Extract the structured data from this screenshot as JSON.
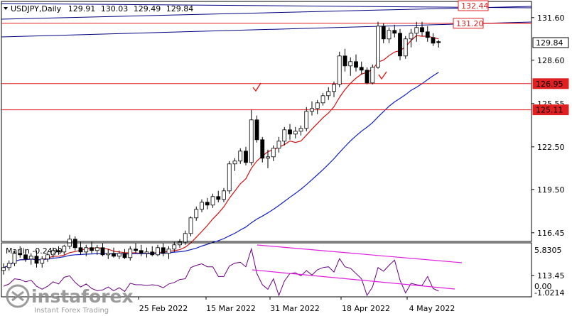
{
  "chart_data": [
    {
      "type": "candlestick",
      "header": {
        "symbol": "USDJPY,Daily",
        "open": "129.91",
        "high": "130.03",
        "low": "129.49",
        "close": "129.84"
      },
      "price_ticks": [
        "131.60",
        "128.60",
        "125.55",
        "122.50",
        "119.50",
        "116.45",
        "113.45"
      ],
      "price_ticks_value": [
        131.6,
        128.6,
        125.55,
        122.5,
        119.5,
        116.45,
        113.45
      ],
      "x_labels": [
        "25 Feb 2022",
        "15 Mar 2022",
        "31 Mar 2022",
        "18 Apr 2022",
        "4 May 2022"
      ],
      "levels": [
        {
          "label": "132.44",
          "value": 132.44,
          "color": "#e02020"
        },
        {
          "label": "131.20",
          "value": 131.2,
          "color": "#e02020"
        },
        {
          "label": "129.84",
          "value": 129.84,
          "color": "#000000"
        },
        {
          "label": "126.95",
          "value": 126.95,
          "color": "#e02020"
        },
        {
          "label": "125.11",
          "value": 125.11,
          "color": "#e02020"
        }
      ],
      "candles": [
        [
          113.8,
          114.3,
          113.5,
          114.0
        ],
        [
          114.0,
          114.5,
          113.8,
          114.3
        ],
        [
          114.3,
          115.2,
          114.1,
          115.0
        ],
        [
          115.0,
          115.5,
          114.7,
          114.9
        ],
        [
          114.9,
          115.3,
          114.4,
          114.6
        ],
        [
          114.6,
          115.0,
          114.2,
          114.8
        ],
        [
          114.8,
          115.2,
          114.0,
          114.3
        ],
        [
          114.3,
          114.8,
          114.0,
          114.6
        ],
        [
          114.6,
          115.1,
          114.4,
          114.9
        ],
        [
          114.9,
          115.4,
          114.7,
          115.2
        ],
        [
          115.2,
          115.5,
          114.9,
          115.1
        ],
        [
          115.1,
          115.6,
          114.9,
          115.5
        ],
        [
          115.5,
          116.3,
          115.3,
          116.0
        ],
        [
          116.0,
          116.2,
          115.2,
          115.4
        ],
        [
          115.4,
          115.8,
          114.9,
          115.1
        ],
        [
          115.1,
          115.6,
          114.8,
          115.4
        ],
        [
          115.4,
          115.8,
          115.0,
          115.2
        ],
        [
          115.2,
          115.6,
          114.9,
          115.4
        ],
        [
          115.4,
          115.7,
          114.8,
          114.9
        ],
        [
          114.9,
          115.3,
          114.6,
          115.0
        ],
        [
          115.0,
          115.4,
          114.7,
          114.8
        ],
        [
          114.8,
          115.2,
          114.6,
          115.0
        ],
        [
          115.0,
          115.3,
          114.6,
          114.7
        ],
        [
          114.7,
          115.5,
          114.5,
          115.3
        ],
        [
          115.3,
          115.7,
          115.0,
          115.2
        ],
        [
          115.2,
          115.6,
          114.8,
          115.0
        ],
        [
          115.0,
          115.4,
          114.7,
          115.1
        ],
        [
          115.1,
          115.5,
          114.8,
          114.9
        ],
        [
          114.9,
          115.6,
          114.8,
          115.4
        ],
        [
          115.4,
          115.7,
          114.8,
          115.0
        ],
        [
          115.0,
          115.5,
          114.6,
          115.3
        ],
        [
          115.3,
          115.8,
          115.1,
          115.6
        ],
        [
          115.6,
          116.0,
          115.4,
          115.8
        ],
        [
          115.8,
          116.6,
          115.6,
          116.4
        ],
        [
          116.4,
          117.6,
          116.2,
          117.5
        ],
        [
          117.5,
          118.3,
          117.3,
          118.1
        ],
        [
          118.1,
          118.8,
          117.9,
          118.6
        ],
        [
          118.6,
          118.9,
          118.1,
          118.4
        ],
        [
          118.4,
          119.2,
          118.2,
          119.0
        ],
        [
          119.0,
          119.4,
          118.6,
          118.8
        ],
        [
          118.8,
          119.6,
          118.6,
          119.4
        ],
        [
          119.4,
          121.5,
          119.2,
          121.3
        ],
        [
          121.3,
          121.7,
          120.8,
          121.5
        ],
        [
          121.5,
          122.4,
          121.3,
          122.2
        ],
        [
          122.2,
          122.5,
          121.2,
          121.4
        ],
        [
          121.4,
          125.1,
          121.2,
          124.4
        ],
        [
          124.4,
          124.7,
          122.8,
          123.0
        ],
        [
          123.0,
          123.2,
          121.4,
          121.7
        ],
        [
          121.7,
          122.3,
          121.0,
          121.8
        ],
        [
          121.8,
          122.6,
          121.5,
          122.4
        ],
        [
          122.4,
          123.2,
          122.1,
          122.9
        ],
        [
          122.9,
          123.9,
          122.6,
          123.7
        ],
        [
          123.7,
          124.1,
          123.0,
          123.4
        ],
        [
          123.4,
          123.9,
          123.1,
          123.6
        ],
        [
          123.6,
          124.0,
          123.3,
          123.8
        ],
        [
          123.8,
          125.3,
          123.6,
          125.0
        ],
        [
          125.0,
          125.7,
          124.7,
          125.2
        ],
        [
          125.2,
          125.8,
          124.8,
          125.6
        ],
        [
          125.6,
          126.3,
          125.4,
          126.1
        ],
        [
          126.1,
          126.7,
          125.8,
          126.4
        ],
        [
          126.4,
          127.1,
          126.0,
          126.9
        ],
        [
          126.9,
          129.2,
          126.7,
          128.9
        ],
        [
          128.9,
          129.4,
          127.8,
          128.2
        ],
        [
          128.2,
          128.8,
          127.5,
          128.5
        ],
        [
          128.5,
          129.0,
          127.8,
          128.1
        ],
        [
          128.1,
          128.5,
          127.6,
          127.9
        ],
        [
          127.9,
          128.1,
          126.9,
          127.0
        ],
        [
          127.0,
          128.3,
          126.9,
          128.1
        ],
        [
          128.1,
          131.3,
          128.0,
          131.0
        ],
        [
          131.0,
          131.2,
          129.8,
          130.1
        ],
        [
          130.1,
          130.9,
          129.8,
          130.7
        ],
        [
          130.7,
          131.1,
          130.2,
          130.5
        ],
        [
          130.5,
          130.8,
          128.6,
          128.9
        ],
        [
          128.9,
          130.3,
          128.7,
          130.1
        ],
        [
          130.1,
          130.8,
          129.5,
          130.5
        ],
        [
          130.5,
          131.3,
          129.9,
          130.9
        ],
        [
          130.9,
          131.3,
          130.3,
          130.6
        ],
        [
          130.6,
          131.0,
          129.9,
          130.2
        ],
        [
          130.2,
          130.5,
          129.6,
          129.8
        ],
        [
          129.91,
          130.03,
          129.49,
          129.84
        ]
      ],
      "marlin": {
        "label": "Marlin -0.2490",
        "ticks": [
          "5.8305",
          "0.00",
          "-1.0214"
        ],
        "ticks_value": [
          5.8305,
          0,
          -1.0214
        ]
      },
      "watermark": {
        "brand": "instaforex",
        "tagline": "Instant Forex Trading"
      }
    }
  ]
}
